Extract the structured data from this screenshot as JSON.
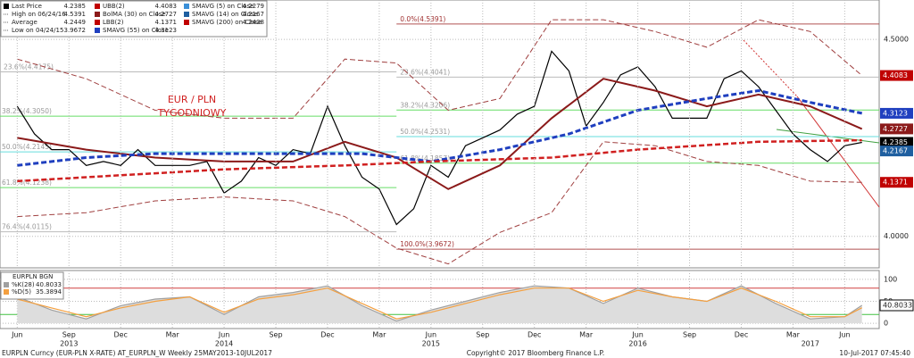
{
  "chart_data": [
    {
      "type": "line",
      "annotation": "EUR / PLN",
      "annotation2": "TYGODNIOWY",
      "xlim": [
        "2013-05",
        "2017-08"
      ],
      "ylim": [
        3.92,
        4.6
      ],
      "yticks": [
        {
          "value": 4.0,
          "label": "4.0000"
        },
        {
          "value": 4.5,
          "label": "4.5000"
        }
      ],
      "grid": true,
      "legend": [
        {
          "name": "Last Price",
          "value": 4.2385,
          "color": "#000000"
        },
        {
          "name": "High on 06/24/16",
          "value": 4.5391,
          "color": null
        },
        {
          "name": "Average",
          "value": 4.2449,
          "color": null
        },
        {
          "name": "Low on 04/24/15",
          "value": 3.9672,
          "color": null
        },
        {
          "name": "UBB(2)",
          "value": 4.4083,
          "color": "#c00000"
        },
        {
          "name": "BolMA (30) on Close",
          "value": 4.2727,
          "color": "#8b1a1a"
        },
        {
          "name": "LBB(2)",
          "value": 4.1371,
          "color": "#c00000"
        },
        {
          "name": "SMAVG (55) on Close",
          "value": 4.3123,
          "color": "#1f3fbf"
        },
        {
          "name": "SMAVG (5) on Close",
          "value": 4.2279,
          "color": "#3a8fd8"
        },
        {
          "name": "SMAVG (14) on Close",
          "value": 4.2167,
          "color": "#1f5fa0"
        },
        {
          "name": "SMAVG (200) on Close",
          "value": 4.2438,
          "color": "#c00000"
        }
      ],
      "price_labels": [
        {
          "value": 4.4083,
          "color": "#c00000"
        },
        {
          "value": 4.3123,
          "color": "#1f3fbf"
        },
        {
          "value": 4.2727,
          "color": "#8b1a1a"
        },
        {
          "value": 4.2385,
          "color": "#000000"
        },
        {
          "value": 4.2167,
          "color": "#1f5fa0"
        },
        {
          "value": 4.1371,
          "color": "#c00000"
        }
      ],
      "fib_levels": [
        {
          "label": "23.6%(4.4175)",
          "value": 4.4175,
          "color": "#bbbbbb",
          "x": [
            "2013-05",
            "2015-04"
          ]
        },
        {
          "label": "38.2%(4.3050)",
          "value": 4.305,
          "color": "#66dd66",
          "x": [
            "2013-05",
            "2015-04"
          ]
        },
        {
          "label": "50.0%(4.2145)",
          "value": 4.2145,
          "color": "#66dddd",
          "x": [
            "2013-05",
            "2015-04"
          ]
        },
        {
          "label": "61.8%(4.1238)",
          "value": 4.1238,
          "color": "#66dd66",
          "x": [
            "2013-05",
            "2015-04"
          ]
        },
        {
          "label": "76.4%(4.0115)",
          "value": 4.0115,
          "color": "#bbbbbb",
          "x": [
            "2013-05",
            "2015-04"
          ]
        },
        {
          "label": "0.0%(4.5391)",
          "value": 4.5391,
          "color": "#b05050",
          "x": [
            "2015-04",
            "2017-08"
          ]
        },
        {
          "label": "23.6%(4.4041)",
          "value": 4.4041,
          "color": "#bbbbbb",
          "x": [
            "2015-04",
            "2017-08"
          ]
        },
        {
          "label": "38.2%(4.3206)",
          "value": 4.3206,
          "color": "#66dd66",
          "x": [
            "2015-04",
            "2017-08"
          ]
        },
        {
          "label": "50.0%(4.2531)",
          "value": 4.2531,
          "color": "#66dddd",
          "x": [
            "2015-04",
            "2017-08"
          ]
        },
        {
          "label": "61.8%(4.1857)",
          "value": 4.1857,
          "color": "#66dd66",
          "x": [
            "2015-04",
            "2017-08"
          ]
        },
        {
          "label": "100.0%(3.9672)",
          "value": 3.9672,
          "color": "#b05050",
          "x": [
            "2015-04",
            "2017-08"
          ]
        }
      ],
      "series": [
        {
          "color": "#000000",
          "width": 1.2,
          "dash": false,
          "x": [
            "2013-06",
            "2013-07",
            "2013-08",
            "2013-09",
            "2013-10",
            "2013-11",
            "2013-12",
            "2014-01",
            "2014-02",
            "2014-03",
            "2014-04",
            "2014-05",
            "2014-06",
            "2014-07",
            "2014-08",
            "2014-09",
            "2014-10",
            "2014-11",
            "2014-12",
            "2015-01",
            "2015-02",
            "2015-03",
            "2015-04",
            "2015-05",
            "2015-06",
            "2015-07",
            "2015-08",
            "2015-09",
            "2015-10",
            "2015-11",
            "2015-12",
            "2016-01",
            "2016-02",
            "2016-03",
            "2016-04",
            "2016-05",
            "2016-06",
            "2016-07",
            "2016-08",
            "2016-09",
            "2016-10",
            "2016-11",
            "2016-12",
            "2017-01",
            "2017-02",
            "2017-03",
            "2017-04",
            "2017-05",
            "2017-06",
            "2017-07"
          ],
          "values": [
            4.33,
            4.26,
            4.22,
            4.22,
            4.18,
            4.19,
            4.18,
            4.22,
            4.18,
            4.18,
            4.18,
            4.19,
            4.11,
            4.14,
            4.2,
            4.18,
            4.22,
            4.21,
            4.33,
            4.23,
            4.15,
            4.12,
            4.03,
            4.07,
            4.18,
            4.15,
            4.23,
            4.25,
            4.27,
            4.31,
            4.33,
            4.47,
            4.42,
            4.28,
            4.34,
            4.41,
            4.43,
            4.38,
            4.3,
            4.3,
            4.3,
            4.4,
            4.42,
            4.38,
            4.32,
            4.26,
            4.22,
            4.19,
            4.23,
            4.2385
          ]
        },
        {
          "color": "#a04040",
          "width": 1,
          "dash": true,
          "x": [
            "2013-06",
            "2013-10",
            "2014-02",
            "2014-06",
            "2014-10",
            "2015-01",
            "2015-04",
            "2015-07",
            "2015-10",
            "2016-01",
            "2016-04",
            "2016-07",
            "2016-10",
            "2017-01",
            "2017-04",
            "2017-07"
          ],
          "values": [
            4.45,
            4.4,
            4.32,
            4.3,
            4.3,
            4.45,
            4.44,
            4.32,
            4.35,
            4.55,
            4.55,
            4.52,
            4.48,
            4.55,
            4.52,
            4.4083
          ]
        },
        {
          "color": "#a04040",
          "width": 1,
          "dash": true,
          "x": [
            "2013-06",
            "2013-10",
            "2014-02",
            "2014-06",
            "2014-10",
            "2015-01",
            "2015-04",
            "2015-07",
            "2015-10",
            "2016-01",
            "2016-04",
            "2016-07",
            "2016-10",
            "2017-01",
            "2017-04",
            "2017-07"
          ],
          "values": [
            4.05,
            4.06,
            4.09,
            4.1,
            4.09,
            4.05,
            3.97,
            3.93,
            4.01,
            4.06,
            4.24,
            4.23,
            4.19,
            4.18,
            4.14,
            4.1371
          ]
        },
        {
          "color": "#8b1a1a",
          "width": 2,
          "dash": false,
          "x": [
            "2013-06",
            "2013-10",
            "2014-02",
            "2014-06",
            "2014-10",
            "2015-01",
            "2015-04",
            "2015-07",
            "2015-10",
            "2016-01",
            "2016-04",
            "2016-07",
            "2016-10",
            "2017-01",
            "2017-04",
            "2017-07"
          ],
          "values": [
            4.25,
            4.22,
            4.2,
            4.19,
            4.19,
            4.24,
            4.2,
            4.12,
            4.18,
            4.3,
            4.4,
            4.37,
            4.33,
            4.36,
            4.33,
            4.2727
          ]
        },
        {
          "color": "#1f3fbf",
          "width": 3,
          "dash": true,
          "x": [
            "2013-06",
            "2013-10",
            "2014-02",
            "2014-06",
            "2014-10",
            "2015-02",
            "2015-06",
            "2015-10",
            "2016-02",
            "2016-06",
            "2016-10",
            "2017-01",
            "2017-04",
            "2017-07"
          ],
          "values": [
            4.18,
            4.2,
            4.21,
            4.21,
            4.21,
            4.21,
            4.19,
            4.22,
            4.26,
            4.32,
            4.35,
            4.37,
            4.34,
            4.3123
          ]
        },
        {
          "color": "#d02020",
          "width": 2.5,
          "dash": true,
          "x": [
            "2013-06",
            "2014-06",
            "2015-01",
            "2015-06",
            "2016-01",
            "2016-06",
            "2017-01",
            "2017-07"
          ],
          "values": [
            4.14,
            4.17,
            4.18,
            4.19,
            4.2,
            4.22,
            4.24,
            4.2438
          ]
        }
      ]
    },
    {
      "type": "line",
      "title": "EURPLN BGN",
      "xlim": [
        "2013-05",
        "2017-08"
      ],
      "ylim": [
        -12,
        120
      ],
      "yticks": [
        0,
        50,
        100
      ],
      "grid": true,
      "hlines": [
        {
          "value": 80,
          "color": "#d04040"
        },
        {
          "value": 20,
          "color": "#40c040"
        }
      ],
      "current": {
        "value": 40.8033
      },
      "xticks": [
        {
          "value": "2013-06",
          "label": "Jun"
        },
        {
          "value": "2013-09",
          "label": "Sep"
        },
        {
          "value": "2013-12",
          "label": "Dec"
        },
        {
          "value": "2014-03",
          "label": "Mar"
        },
        {
          "value": "2014-06",
          "label": "Jun"
        },
        {
          "value": "2014-09",
          "label": "Sep"
        },
        {
          "value": "2014-12",
          "label": "Dec"
        },
        {
          "value": "2015-03",
          "label": "Mar"
        },
        {
          "value": "2015-06",
          "label": "Jun"
        },
        {
          "value": "2015-09",
          "label": "Sep"
        },
        {
          "value": "2015-12",
          "label": "Dec"
        },
        {
          "value": "2016-03",
          "label": "Mar"
        },
        {
          "value": "2016-06",
          "label": "Jun"
        },
        {
          "value": "2016-09",
          "label": "Sep"
        },
        {
          "value": "2016-12",
          "label": "Dec"
        },
        {
          "value": "2017-03",
          "label": "Mar"
        },
        {
          "value": "2017-06",
          "label": "Jun"
        }
      ],
      "year_labels": [
        {
          "value": "2013-09",
          "label": "2013"
        },
        {
          "value": "2014-06",
          "label": "2014"
        },
        {
          "value": "2015-06",
          "label": "2015"
        },
        {
          "value": "2016-06",
          "label": "2016"
        },
        {
          "value": "2017-04",
          "label": "2017"
        }
      ],
      "series": [
        {
          "name": "%K(28)",
          "value": 40.8033,
          "color": "#a0a0a0",
          "x": [
            "2013-06",
            "2013-08",
            "2013-10",
            "2013-12",
            "2014-02",
            "2014-04",
            "2014-06",
            "2014-08",
            "2014-10",
            "2014-12",
            "2015-02",
            "2015-04",
            "2015-06",
            "2015-08",
            "2015-10",
            "2015-12",
            "2016-02",
            "2016-04",
            "2016-06",
            "2016-08",
            "2016-10",
            "2016-12",
            "2017-02",
            "2017-04",
            "2017-06",
            "2017-07"
          ],
          "values": [
            60,
            30,
            10,
            40,
            55,
            60,
            20,
            60,
            70,
            85,
            40,
            5,
            30,
            50,
            70,
            85,
            80,
            45,
            80,
            60,
            50,
            85,
            45,
            10,
            15,
            40.8033
          ]
        },
        {
          "name": "%D(5)",
          "value": 35.3894,
          "color": "#f4a040",
          "x": [
            "2013-06",
            "2013-08",
            "2013-10",
            "2013-12",
            "2014-02",
            "2014-04",
            "2014-06",
            "2014-08",
            "2014-10",
            "2014-12",
            "2015-02",
            "2015-04",
            "2015-06",
            "2015-08",
            "2015-10",
            "2015-12",
            "2016-02",
            "2016-04",
            "2016-06",
            "2016-08",
            "2016-10",
            "2016-12",
            "2017-02",
            "2017-04",
            "2017-06",
            "2017-07"
          ],
          "values": [
            55,
            35,
            15,
            35,
            50,
            60,
            25,
            55,
            65,
            80,
            45,
            10,
            25,
            45,
            65,
            80,
            80,
            50,
            75,
            60,
            50,
            80,
            50,
            15,
            15,
            35.3894
          ]
        }
      ]
    }
  ],
  "footer": {
    "left": "EURPLN Curncy (EUR-PLN X-RATE) AT_EURPLN_W  Weekly 25MAY2013-10JUL2017",
    "center": "Copyright© 2017 Bloomberg Finance L.P.",
    "right": "10-Jul-2017 07:45:40"
  }
}
